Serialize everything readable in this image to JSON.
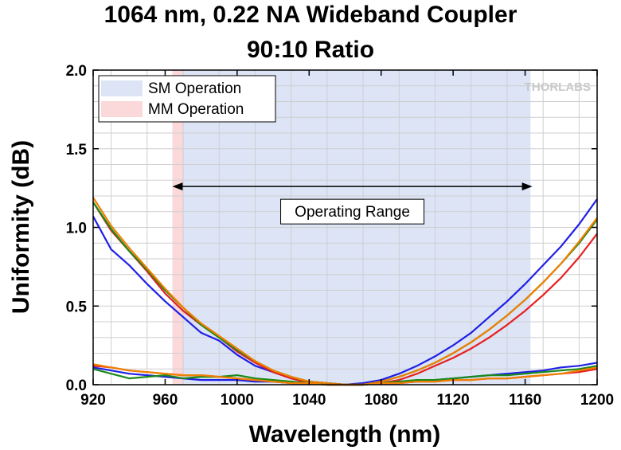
{
  "title_line1": "1064 nm, 0.22 NA Wideband Coupler",
  "title_line2": "90:10 Ratio",
  "watermark": "THORLABS",
  "chart_data": {
    "type": "line",
    "xlabel": "Wavelength (nm)",
    "ylabel": "Uniformity (dB)",
    "xlim": [
      920,
      1200
    ],
    "ylim": [
      0,
      2.0
    ],
    "xticks": [
      920,
      960,
      1000,
      1040,
      1080,
      1120,
      1160,
      1200
    ],
    "yticks": [
      0.0,
      0.5,
      1.0,
      1.5,
      2.0
    ],
    "ytick_labels": [
      "0.0",
      "0.5",
      "1.0",
      "1.5",
      "2.0"
    ],
    "grid": true,
    "legend_position": "top-left",
    "legend": [
      {
        "label": "SM Operation",
        "color": "#dce4f5"
      },
      {
        "label": "MM Operation",
        "color": "#fbd9da"
      }
    ],
    "shaded_regions": [
      {
        "label": "SM Operation",
        "x": [
          970,
          1163
        ],
        "color": "#dce4f5"
      },
      {
        "label": "MM Operation",
        "x": [
          964,
          970
        ],
        "color": "#fbd9da"
      }
    ],
    "annotation": {
      "text": "Operating Range",
      "arrow_x": [
        964,
        1164
      ],
      "arrow_y": 1.26
    },
    "series": [
      {
        "color": "#1f1fe6",
        "x": [
          920,
          930,
          940,
          950,
          960,
          970,
          980,
          990,
          1000,
          1010,
          1020,
          1030,
          1040,
          1050,
          1060,
          1070,
          1080,
          1090,
          1100,
          1110,
          1120,
          1130,
          1140,
          1150,
          1160,
          1170,
          1180,
          1190,
          1200
        ],
        "y": [
          1.07,
          0.86,
          0.76,
          0.64,
          0.53,
          0.43,
          0.33,
          0.28,
          0.19,
          0.12,
          0.08,
          0.04,
          0.02,
          0.01,
          0.0,
          0.01,
          0.03,
          0.07,
          0.12,
          0.18,
          0.25,
          0.33,
          0.43,
          0.53,
          0.64,
          0.76,
          0.88,
          1.02,
          1.18
        ]
      },
      {
        "color": "#e62020",
        "x": [
          920,
          930,
          940,
          950,
          960,
          970,
          980,
          990,
          1000,
          1010,
          1020,
          1030,
          1040,
          1050,
          1060,
          1070,
          1080,
          1090,
          1100,
          1110,
          1120,
          1130,
          1140,
          1150,
          1160,
          1170,
          1180,
          1190,
          1200
        ],
        "y": [
          1.16,
          0.98,
          0.85,
          0.72,
          0.58,
          0.47,
          0.38,
          0.3,
          0.21,
          0.14,
          0.08,
          0.04,
          0.01,
          0.0,
          0.0,
          0.0,
          0.01,
          0.03,
          0.07,
          0.12,
          0.17,
          0.23,
          0.3,
          0.38,
          0.47,
          0.57,
          0.68,
          0.81,
          0.96
        ]
      },
      {
        "color": "#1a8a1a",
        "x": [
          920,
          930,
          940,
          950,
          960,
          970,
          980,
          990,
          1000,
          1010,
          1020,
          1030,
          1040,
          1050,
          1060,
          1070,
          1080,
          1090,
          1100,
          1110,
          1120,
          1130,
          1140,
          1150,
          1160,
          1170,
          1180,
          1190,
          1200
        ],
        "y": [
          1.16,
          0.99,
          0.85,
          0.73,
          0.6,
          0.49,
          0.38,
          0.3,
          0.22,
          0.15,
          0.09,
          0.05,
          0.02,
          0.01,
          0.0,
          0.0,
          0.02,
          0.05,
          0.09,
          0.14,
          0.2,
          0.27,
          0.35,
          0.44,
          0.54,
          0.65,
          0.77,
          0.9,
          1.05
        ]
      },
      {
        "color": "#f08000",
        "x": [
          920,
          930,
          940,
          950,
          960,
          970,
          980,
          990,
          1000,
          1010,
          1020,
          1030,
          1040,
          1050,
          1060,
          1070,
          1080,
          1090,
          1100,
          1110,
          1120,
          1130,
          1140,
          1150,
          1160,
          1170,
          1180,
          1190,
          1200
        ],
        "y": [
          1.19,
          1.01,
          0.87,
          0.74,
          0.61,
          0.49,
          0.39,
          0.31,
          0.23,
          0.15,
          0.09,
          0.05,
          0.02,
          0.01,
          0.0,
          0.0,
          0.02,
          0.05,
          0.09,
          0.14,
          0.2,
          0.27,
          0.35,
          0.44,
          0.54,
          0.65,
          0.77,
          0.91,
          1.06
        ]
      },
      {
        "color": "#1f1fe6",
        "x": [
          920,
          930,
          940,
          950,
          960,
          970,
          980,
          990,
          1000,
          1010,
          1020,
          1030,
          1040,
          1050,
          1060,
          1070,
          1080,
          1090,
          1100,
          1110,
          1120,
          1130,
          1140,
          1150,
          1160,
          1170,
          1180,
          1190,
          1200
        ],
        "y": [
          0.11,
          0.09,
          0.07,
          0.06,
          0.05,
          0.04,
          0.03,
          0.03,
          0.03,
          0.02,
          0.02,
          0.01,
          0.01,
          0.0,
          0.0,
          0.0,
          0.01,
          0.01,
          0.02,
          0.03,
          0.04,
          0.05,
          0.06,
          0.07,
          0.08,
          0.09,
          0.11,
          0.12,
          0.14
        ]
      },
      {
        "color": "#e62020",
        "x": [
          920,
          930,
          940,
          950,
          960,
          970,
          980,
          990,
          1000,
          1010,
          1020,
          1030,
          1040,
          1050,
          1060,
          1070,
          1080,
          1090,
          1100,
          1110,
          1120,
          1130,
          1140,
          1150,
          1160,
          1170,
          1180,
          1190,
          1200
        ],
        "y": [
          0.12,
          0.11,
          0.09,
          0.08,
          0.07,
          0.06,
          0.06,
          0.05,
          0.04,
          0.03,
          0.02,
          0.01,
          0.01,
          0.0,
          0.0,
          0.0,
          0.01,
          0.01,
          0.02,
          0.02,
          0.03,
          0.03,
          0.04,
          0.04,
          0.05,
          0.06,
          0.07,
          0.08,
          0.1
        ]
      },
      {
        "color": "#1a8a1a",
        "x": [
          920,
          930,
          940,
          950,
          960,
          970,
          980,
          990,
          1000,
          1010,
          1020,
          1030,
          1040,
          1050,
          1060,
          1070,
          1080,
          1090,
          1100,
          1110,
          1120,
          1130,
          1140,
          1150,
          1160,
          1170,
          1180,
          1190,
          1200
        ],
        "y": [
          0.1,
          0.07,
          0.04,
          0.05,
          0.06,
          0.04,
          0.05,
          0.05,
          0.06,
          0.04,
          0.03,
          0.02,
          0.01,
          0.0,
          0.0,
          0.0,
          0.01,
          0.02,
          0.03,
          0.03,
          0.04,
          0.05,
          0.06,
          0.06,
          0.07,
          0.08,
          0.09,
          0.1,
          0.12
        ]
      },
      {
        "color": "#f08000",
        "x": [
          920,
          930,
          940,
          950,
          960,
          970,
          980,
          990,
          1000,
          1010,
          1020,
          1030,
          1040,
          1050,
          1060,
          1070,
          1080,
          1090,
          1100,
          1110,
          1120,
          1130,
          1140,
          1150,
          1160,
          1170,
          1180,
          1190,
          1200
        ],
        "y": [
          0.13,
          0.11,
          0.09,
          0.08,
          0.07,
          0.06,
          0.06,
          0.05,
          0.04,
          0.03,
          0.02,
          0.01,
          0.01,
          0.0,
          0.0,
          0.0,
          0.01,
          0.01,
          0.02,
          0.02,
          0.03,
          0.03,
          0.04,
          0.04,
          0.05,
          0.06,
          0.07,
          0.09,
          0.11
        ]
      }
    ]
  }
}
